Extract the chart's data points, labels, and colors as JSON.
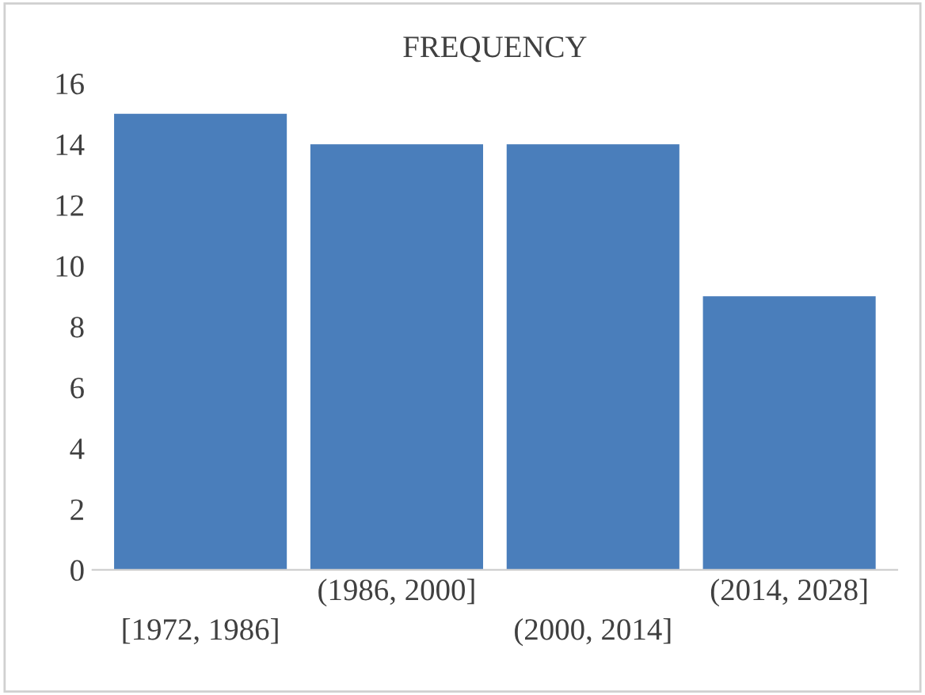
{
  "chart_data": {
    "type": "bar",
    "title": "FREQUENCY",
    "categories": [
      "[1972, 1986]",
      "(1986, 2000]",
      "(2000, 2014]",
      "(2014, 2028]"
    ],
    "values": [
      15,
      14,
      14,
      9
    ],
    "color": "#4a7ebb",
    "ylim": [
      0,
      16
    ],
    "yticks": [
      0,
      2,
      4,
      6,
      8,
      10,
      12,
      14,
      16
    ],
    "grid": false
  }
}
